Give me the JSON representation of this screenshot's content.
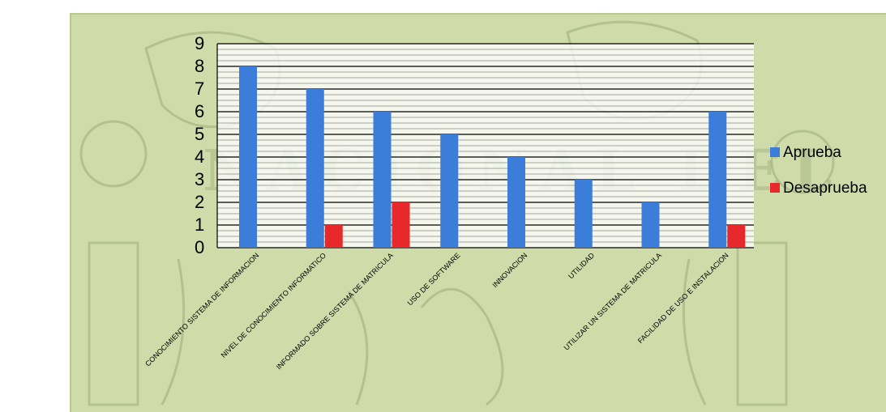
{
  "chart_data": {
    "type": "bar",
    "categories": [
      "CONOCIMIENTO SISTEMA DE INFORMACION",
      "NIVEL DE CONOCIMIENTO INFORMATICO",
      "INFORMADO SOBRE SISTEMA DE MATRICULA",
      "USO DE SOFTWARE",
      "INNOVACION",
      "UTILIDAD",
      "UTILIZAR UN SISTEMA DE MATRICULA",
      "FACILIDAD DE USO E INSTALACION"
    ],
    "series": [
      {
        "name": "Aprueba",
        "color": "#3b7dd8",
        "values": [
          8,
          7,
          6,
          5,
          4,
          3,
          2,
          6
        ]
      },
      {
        "name": "Desaprueba",
        "color": "#e8292b",
        "values": [
          0,
          1,
          2,
          0,
          0,
          0,
          0,
          1
        ]
      }
    ],
    "y_ticks": [
      "0",
      "1",
      "2",
      "3",
      "4",
      "5",
      "6",
      "7",
      "8",
      "9"
    ],
    "ylim": [
      0,
      9
    ],
    "grid": true,
    "legend_position": "right",
    "title": "",
    "xlabel": "",
    "ylabel": ""
  }
}
